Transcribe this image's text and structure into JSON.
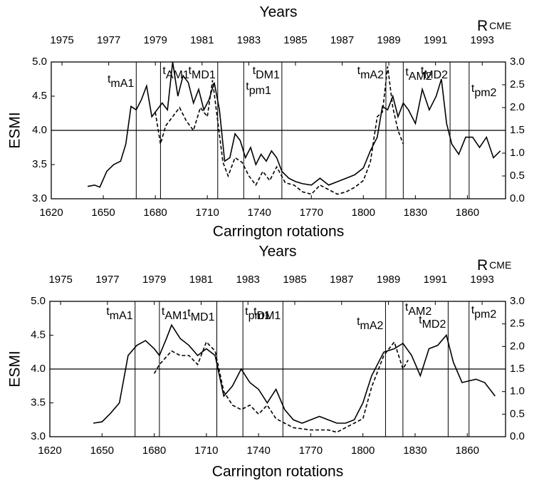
{
  "chart_data": [
    {
      "type": "line",
      "title": "Years",
      "xlabel": "Carrington rotations",
      "ylabel": "ESMI",
      "y2label": {
        "main": "R",
        "sub": "CME"
      },
      "xlim": [
        1620,
        1882
      ],
      "xticks": [
        1620,
        1650,
        1680,
        1710,
        1740,
        1770,
        1800,
        1830,
        1860
      ],
      "x2lim": [
        1974.54,
        1994.0
      ],
      "x2ticks": [
        1975,
        1977,
        1979,
        1981,
        1983,
        1985,
        1987,
        1989,
        1991,
        1993
      ],
      "ylim": [
        3.0,
        5.0
      ],
      "yticks": [
        {
          "value": 3.0,
          "label": "3.0"
        },
        {
          "value": 3.5,
          "label": "3.5"
        },
        {
          "value": 4.0,
          "label": "4.0"
        },
        {
          "value": 4.5,
          "label": "4.5"
        },
        {
          "value": 5.0,
          "label": "5.0"
        }
      ],
      "y2lim": [
        0.0,
        3.0
      ],
      "y2ticks": [
        {
          "value": 0.0,
          "label": "0.0"
        },
        {
          "value": 0.5,
          "label": "0.5"
        },
        {
          "value": 1.0,
          "label": "1.0"
        },
        {
          "value": 1.5,
          "label": "1.5"
        },
        {
          "value": 2.0,
          "label": "2.0"
        },
        {
          "value": 2.5,
          "label": "2.5"
        },
        {
          "value": 3.0,
          "label": "3.0"
        }
      ],
      "hline": 4.0,
      "annotations": [
        {
          "text": "t",
          "sub": "mA1",
          "x": 1669
        },
        {
          "text": "t",
          "sub": "AM1",
          "x": 1683
        },
        {
          "text": "t",
          "sub": "MD1",
          "x": 1716
        },
        {
          "text": "t",
          "sub": "pm1",
          "x": 1731
        },
        {
          "text": "t",
          "sub": "DM1",
          "x": 1753
        },
        {
          "text": "t",
          "sub": "mA2",
          "x": 1813
        },
        {
          "text": "t",
          "sub": "AM2",
          "x": 1823
        },
        {
          "text": "t",
          "sub": "MD2",
          "x": 1850
        },
        {
          "text": "t",
          "sub": "pm2",
          "x": 1861
        }
      ],
      "series": [
        {
          "style": "solid",
          "color": "#000000",
          "x": [
            1641,
            1645,
            1648,
            1652,
            1656,
            1660,
            1663,
            1666,
            1669,
            1672,
            1675,
            1678,
            1681,
            1684,
            1687,
            1690,
            1693,
            1696,
            1699,
            1702,
            1705,
            1708,
            1711,
            1714,
            1717,
            1720,
            1723,
            1726,
            1729,
            1732,
            1735,
            1738,
            1741,
            1744,
            1747,
            1750,
            1753,
            1757,
            1761,
            1765,
            1770,
            1775,
            1780,
            1785,
            1790,
            1795,
            1800,
            1804,
            1808,
            1811,
            1814,
            1817,
            1820,
            1823,
            1826,
            1830,
            1834,
            1838,
            1842,
            1845,
            1848,
            1851,
            1855,
            1859,
            1863,
            1867,
            1871,
            1875,
            1879
          ],
          "values": [
            3.18,
            3.2,
            3.17,
            3.4,
            3.5,
            3.55,
            3.8,
            4.35,
            4.3,
            4.45,
            4.65,
            4.2,
            4.3,
            4.4,
            4.3,
            5.0,
            4.5,
            4.8,
            4.7,
            4.4,
            4.6,
            4.3,
            4.45,
            4.7,
            4.3,
            3.55,
            3.6,
            3.95,
            3.85,
            3.6,
            3.75,
            3.5,
            3.65,
            3.55,
            3.7,
            3.6,
            3.4,
            3.3,
            3.25,
            3.22,
            3.2,
            3.3,
            3.2,
            3.25,
            3.3,
            3.35,
            3.45,
            3.7,
            3.9,
            4.35,
            4.3,
            4.5,
            4.2,
            4.4,
            4.3,
            4.1,
            4.6,
            4.3,
            4.5,
            4.75,
            4.1,
            3.8,
            3.65,
            3.9,
            3.9,
            3.75,
            3.9,
            3.6,
            3.7
          ]
        },
        {
          "style": "dashed",
          "color": "#000000",
          "axis": "y2",
          "x": [
            1680,
            1683,
            1686,
            1690,
            1694,
            1698,
            1702,
            1706,
            1710,
            1713,
            1716,
            1719,
            1722,
            1726,
            1730,
            1734,
            1738,
            1742,
            1746,
            1750,
            1755,
            1760,
            1765,
            1770,
            1775,
            1780,
            1785,
            1790,
            1795,
            1800,
            1804,
            1808,
            1811,
            1814,
            1817,
            1820,
            1823
          ],
          "values": [
            1.9,
            1.2,
            1.6,
            1.8,
            2.0,
            1.7,
            1.5,
            2.0,
            1.8,
            2.6,
            1.7,
            0.8,
            0.5,
            0.9,
            0.8,
            0.5,
            0.3,
            0.6,
            0.4,
            0.7,
            0.35,
            0.3,
            0.15,
            0.1,
            0.3,
            0.2,
            0.1,
            0.15,
            0.25,
            0.4,
            0.8,
            1.8,
            1.9,
            2.9,
            2.0,
            1.5,
            1.2
          ]
        }
      ]
    },
    {
      "type": "line",
      "title": "Years",
      "xlabel": "Carrington rotations",
      "ylabel": "ESMI",
      "y2label": {
        "main": "R",
        "sub": "CME"
      },
      "xlim": [
        1620,
        1882
      ],
      "xticks": [
        1620,
        1650,
        1680,
        1710,
        1740,
        1770,
        1800,
        1830,
        1860
      ],
      "x2lim": [
        1974.54,
        1994.0
      ],
      "x2ticks": [
        1975,
        1977,
        1979,
        1981,
        1983,
        1985,
        1987,
        1989,
        1991,
        1993
      ],
      "ylim": [
        3.0,
        5.0
      ],
      "yticks": [
        {
          "value": 3.0,
          "label": "3.0"
        },
        {
          "value": 3.5,
          "label": "3.5"
        },
        {
          "value": 4.0,
          "label": "4.0"
        },
        {
          "value": 4.5,
          "label": "4.5"
        },
        {
          "value": 5.0,
          "label": "5.0"
        }
      ],
      "y2lim": [
        0.0,
        3.0
      ],
      "y2ticks": [
        {
          "value": 0.0,
          "label": "0.0"
        },
        {
          "value": 0.5,
          "label": "0.5"
        },
        {
          "value": 1.0,
          "label": "1.0"
        },
        {
          "value": 1.5,
          "label": "1.5"
        },
        {
          "value": 2.0,
          "label": "2.0"
        },
        {
          "value": 2.5,
          "label": "2.5"
        },
        {
          "value": 3.0,
          "label": "3.0"
        }
      ],
      "hline": 4.0,
      "annotations": [
        {
          "text": "t",
          "sub": "mA1",
          "x": 1669
        },
        {
          "text": "t",
          "sub": "AM1",
          "x": 1683
        },
        {
          "text": "t",
          "sub": "MD1",
          "x": 1716
        },
        {
          "text": "t",
          "sub": "pm1",
          "x": 1731
        },
        {
          "text": "t",
          "sub": "DM1",
          "x": 1754
        },
        {
          "text": "t",
          "sub": "mA2",
          "x": 1813
        },
        {
          "text": "t",
          "sub": "AM2",
          "x": 1823
        },
        {
          "text": "t",
          "sub": "MD2",
          "x": 1849
        },
        {
          "text": "t",
          "sub": "pm2",
          "x": 1861
        }
      ],
      "series": [
        {
          "style": "solid",
          "color": "#000000",
          "x": [
            1645,
            1650,
            1655,
            1660,
            1665,
            1670,
            1675,
            1680,
            1683,
            1687,
            1690,
            1695,
            1700,
            1705,
            1710,
            1715,
            1720,
            1725,
            1730,
            1735,
            1740,
            1745,
            1750,
            1755,
            1760,
            1765,
            1770,
            1775,
            1780,
            1785,
            1790,
            1795,
            1800,
            1805,
            1812,
            1818,
            1823,
            1828,
            1833,
            1838,
            1843,
            1848,
            1852,
            1857,
            1865,
            1870,
            1876
          ],
          "values": [
            3.2,
            3.22,
            3.35,
            3.5,
            4.2,
            4.35,
            4.42,
            4.3,
            4.2,
            4.45,
            4.65,
            4.45,
            4.35,
            4.2,
            4.3,
            4.2,
            3.6,
            3.75,
            4.0,
            3.8,
            3.7,
            3.5,
            3.7,
            3.4,
            3.25,
            3.2,
            3.25,
            3.3,
            3.25,
            3.2,
            3.2,
            3.25,
            3.5,
            3.9,
            4.25,
            4.3,
            4.38,
            4.2,
            3.9,
            4.3,
            4.35,
            4.5,
            4.1,
            3.8,
            3.85,
            3.8,
            3.6
          ]
        },
        {
          "style": "dashed",
          "color": "#000000",
          "axis": "y2",
          "x": [
            1680,
            1683,
            1690,
            1695,
            1700,
            1705,
            1710,
            1715,
            1720,
            1725,
            1730,
            1735,
            1740,
            1745,
            1750,
            1755,
            1760,
            1770,
            1780,
            1785,
            1790,
            1800,
            1805,
            1812,
            1818,
            1823,
            1826
          ],
          "values": [
            1.4,
            1.6,
            1.9,
            1.8,
            1.8,
            1.6,
            2.1,
            1.9,
            1.0,
            0.7,
            0.6,
            0.7,
            0.5,
            0.7,
            0.4,
            0.3,
            0.2,
            0.15,
            0.15,
            0.1,
            0.2,
            0.4,
            1.1,
            1.8,
            2.1,
            1.5,
            1.7
          ]
        }
      ]
    }
  ]
}
